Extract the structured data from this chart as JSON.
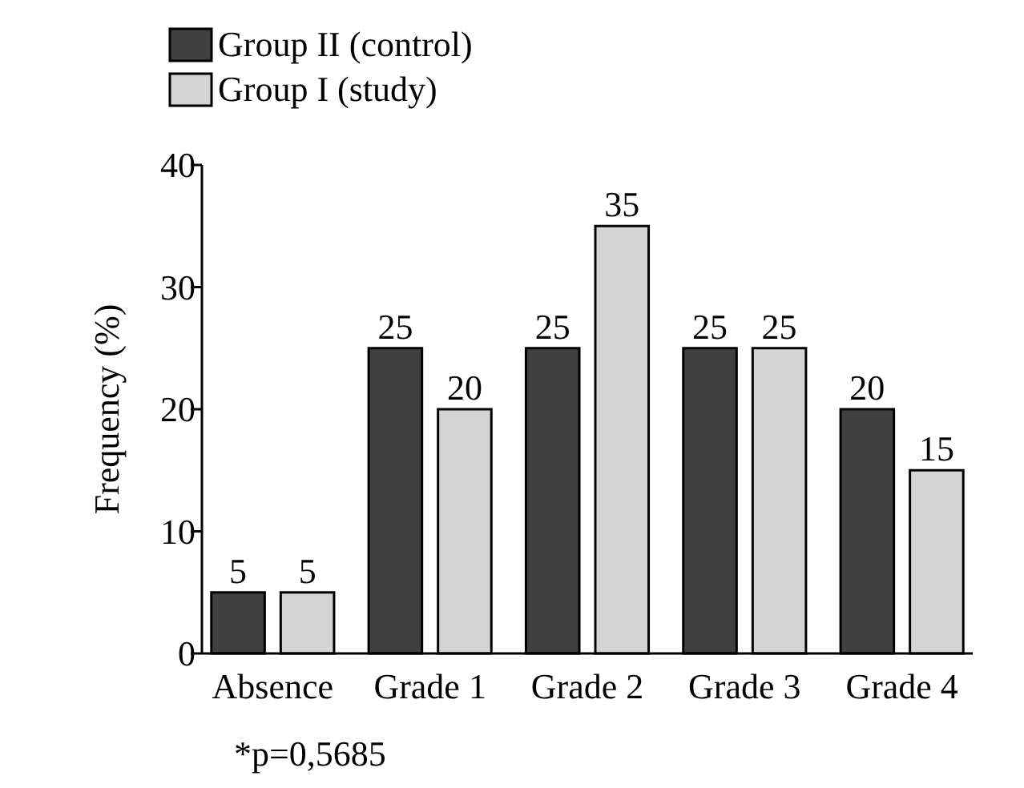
{
  "chart_data": {
    "type": "bar",
    "ylabel": "Frequency (%)",
    "categories": [
      "Absence",
      "Grade 1",
      "Grade 2",
      "Grade 3",
      "Grade 4"
    ],
    "series": [
      {
        "name": "Group II (control)",
        "color": "#404040",
        "values": [
          5,
          25,
          25,
          25,
          20
        ]
      },
      {
        "name": "Group I (study)",
        "color": "#d4d4d4",
        "values": [
          5,
          20,
          35,
          25,
          15
        ]
      }
    ],
    "ylim": [
      0,
      40
    ],
    "yticks": [
      0,
      10,
      20,
      30,
      40
    ],
    "data_labels": true,
    "legend": "top left",
    "grid": false,
    "annotations": [
      "*p=0,5685"
    ]
  }
}
